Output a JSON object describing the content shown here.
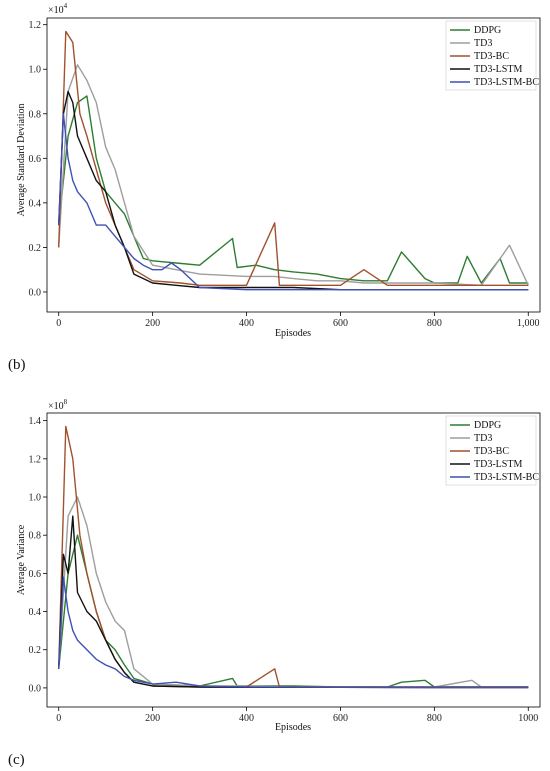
{
  "chart_data": [
    {
      "type": "line",
      "panel_label": "(b)",
      "multiplier": "×10",
      "multiplier_exp": "4",
      "xlabel": "Episodes",
      "ylabel": "Average Standard Deviation",
      "xlim": [
        -25,
        1025
      ],
      "ylim": [
        -0.09,
        1.23
      ],
      "xticks": [
        0,
        200,
        400,
        600,
        800,
        1000
      ],
      "xtick_labels": [
        "0",
        "200",
        "400",
        "600",
        "800",
        "1,000"
      ],
      "yticks": [
        0.0,
        0.2,
        0.4,
        0.6,
        0.8,
        1.0,
        1.2
      ],
      "ytick_labels": [
        "0.0",
        "0.2",
        "0.4",
        "0.6",
        "0.8",
        "1.0",
        "1.2"
      ],
      "legend_position": "top-right",
      "series": [
        {
          "name": "DDPG",
          "color": "#2e7d32",
          "x": [
            0,
            20,
            40,
            60,
            80,
            100,
            120,
            140,
            160,
            180,
            200,
            250,
            300,
            370,
            380,
            420,
            460,
            500,
            550,
            600,
            650,
            700,
            730,
            780,
            800,
            850,
            870,
            900,
            940,
            960,
            1000
          ],
          "y": [
            0.3,
            0.7,
            0.85,
            0.88,
            0.6,
            0.45,
            0.4,
            0.35,
            0.25,
            0.15,
            0.14,
            0.13,
            0.12,
            0.24,
            0.11,
            0.12,
            0.1,
            0.09,
            0.08,
            0.06,
            0.05,
            0.05,
            0.18,
            0.06,
            0.04,
            0.04,
            0.16,
            0.04,
            0.15,
            0.04,
            0.04
          ]
        },
        {
          "name": "TD3",
          "color": "#9e9e9e",
          "x": [
            0,
            20,
            40,
            60,
            80,
            100,
            120,
            140,
            160,
            200,
            250,
            300,
            400,
            460,
            500,
            550,
            600,
            650,
            700,
            760,
            800,
            900,
            960,
            1000
          ],
          "y": [
            0.2,
            0.9,
            1.02,
            0.95,
            0.85,
            0.65,
            0.55,
            0.4,
            0.25,
            0.12,
            0.1,
            0.08,
            0.07,
            0.07,
            0.06,
            0.05,
            0.05,
            0.04,
            0.04,
            0.04,
            0.04,
            0.03,
            0.21,
            0.03
          ]
        },
        {
          "name": "TD3-BC",
          "color": "#a0522d",
          "x": [
            0,
            15,
            30,
            45,
            60,
            80,
            100,
            120,
            140,
            160,
            200,
            260,
            300,
            400,
            460,
            470,
            500,
            550,
            600,
            650,
            700,
            800,
            900,
            1000
          ],
          "y": [
            0.2,
            1.17,
            1.12,
            0.8,
            0.7,
            0.55,
            0.4,
            0.3,
            0.2,
            0.1,
            0.05,
            0.04,
            0.03,
            0.03,
            0.31,
            0.03,
            0.03,
            0.03,
            0.03,
            0.1,
            0.03,
            0.03,
            0.03,
            0.03
          ]
        },
        {
          "name": "TD3-LSTM",
          "color": "#111111",
          "x": [
            0,
            10,
            20,
            30,
            40,
            60,
            80,
            100,
            120,
            140,
            160,
            200,
            250,
            300,
            400,
            500,
            600,
            700,
            800,
            900,
            1000
          ],
          "y": [
            0.3,
            0.8,
            0.9,
            0.85,
            0.7,
            0.6,
            0.5,
            0.45,
            0.3,
            0.2,
            0.08,
            0.04,
            0.03,
            0.02,
            0.02,
            0.02,
            0.01,
            0.01,
            0.01,
            0.01,
            0.01
          ]
        },
        {
          "name": "TD3-LSTM-BC",
          "color": "#3f51b5",
          "x": [
            0,
            10,
            20,
            30,
            40,
            60,
            80,
            100,
            120,
            140,
            160,
            180,
            200,
            220,
            240,
            260,
            280,
            300,
            400,
            500,
            600,
            700,
            800,
            900,
            1000
          ],
          "y": [
            0.3,
            0.8,
            0.6,
            0.5,
            0.45,
            0.4,
            0.3,
            0.3,
            0.25,
            0.2,
            0.15,
            0.12,
            0.1,
            0.1,
            0.13,
            0.1,
            0.06,
            0.02,
            0.01,
            0.01,
            0.01,
            0.01,
            0.01,
            0.01,
            0.01
          ]
        }
      ]
    },
    {
      "type": "line",
      "panel_label": "(c)",
      "multiplier": "×10",
      "multiplier_exp": "8",
      "xlabel": "Episodes",
      "ylabel": "Average Variance",
      "xlim": [
        -25,
        1025
      ],
      "ylim": [
        -0.1,
        1.44
      ],
      "xticks": [
        0,
        200,
        400,
        600,
        800,
        1000
      ],
      "xtick_labels": [
        "0",
        "200",
        "400",
        "600",
        "800",
        "1000"
      ],
      "yticks": [
        0.0,
        0.2,
        0.4,
        0.6,
        0.8,
        1.0,
        1.2,
        1.4
      ],
      "ytick_labels": [
        "0.0",
        "0.2",
        "0.4",
        "0.6",
        "0.8",
        "1.0",
        "1.2",
        "1.4"
      ],
      "legend_position": "top-right",
      "series": [
        {
          "name": "DDPG",
          "color": "#2e7d32",
          "x": [
            0,
            20,
            40,
            60,
            80,
            100,
            120,
            140,
            160,
            200,
            300,
            370,
            380,
            460,
            500,
            600,
            700,
            730,
            780,
            800,
            900,
            1000
          ],
          "y": [
            0.1,
            0.6,
            0.8,
            0.6,
            0.4,
            0.25,
            0.2,
            0.12,
            0.05,
            0.02,
            0.01,
            0.05,
            0.01,
            0.01,
            0.01,
            0.005,
            0.005,
            0.03,
            0.04,
            0.005,
            0.005,
            0.005
          ]
        },
        {
          "name": "TD3",
          "color": "#9e9e9e",
          "x": [
            0,
            20,
            40,
            60,
            80,
            100,
            120,
            140,
            160,
            200,
            300,
            400,
            500,
            600,
            700,
            800,
            880,
            900,
            1000
          ],
          "y": [
            0.1,
            0.9,
            1.0,
            0.85,
            0.6,
            0.45,
            0.35,
            0.3,
            0.1,
            0.02,
            0.01,
            0.01,
            0.005,
            0.005,
            0.005,
            0.005,
            0.04,
            0.005,
            0.005
          ]
        },
        {
          "name": "TD3-BC",
          "color": "#a0522d",
          "x": [
            0,
            15,
            30,
            45,
            60,
            80,
            100,
            120,
            140,
            160,
            200,
            300,
            400,
            460,
            470,
            500,
            600,
            800,
            1000
          ],
          "y": [
            0.1,
            1.37,
            1.2,
            0.8,
            0.6,
            0.4,
            0.25,
            0.15,
            0.08,
            0.03,
            0.01,
            0.005,
            0.005,
            0.1,
            0.005,
            0.005,
            0.005,
            0.005,
            0.005
          ]
        },
        {
          "name": "TD3-LSTM",
          "color": "#111111",
          "x": [
            0,
            10,
            20,
            30,
            40,
            60,
            80,
            100,
            120,
            140,
            160,
            200,
            300,
            400,
            600,
            800,
            1000
          ],
          "y": [
            0.1,
            0.7,
            0.6,
            0.9,
            0.5,
            0.4,
            0.35,
            0.25,
            0.15,
            0.08,
            0.03,
            0.01,
            0.005,
            0.003,
            0.003,
            0.002,
            0.002
          ]
        },
        {
          "name": "TD3-LSTM-BC",
          "color": "#3f51b5",
          "x": [
            0,
            10,
            20,
            30,
            40,
            60,
            80,
            100,
            120,
            140,
            160,
            200,
            250,
            300,
            400,
            600,
            800,
            1000
          ],
          "y": [
            0.1,
            0.58,
            0.4,
            0.3,
            0.25,
            0.2,
            0.15,
            0.12,
            0.1,
            0.06,
            0.04,
            0.02,
            0.03,
            0.01,
            0.005,
            0.003,
            0.002,
            0.002
          ]
        }
      ]
    }
  ]
}
